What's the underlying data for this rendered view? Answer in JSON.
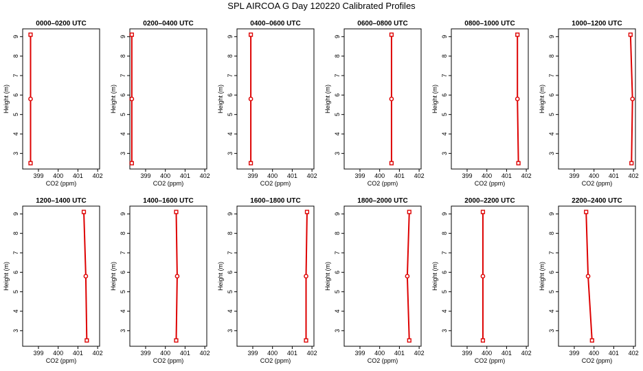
{
  "title": "SPL AIRCOA G  Day 120220  Calibrated Profiles",
  "chart_data": [
    {
      "type": "line",
      "title": "0000–0200 UTC",
      "xlabel": "CO2 (ppm)",
      "ylabel": "Height (m)",
      "xlim": [
        398.2,
        402.1
      ],
      "ylim": [
        2.2,
        9.4
      ],
      "x_ticks": [
        399,
        400,
        401,
        402
      ],
      "y_ticks": [
        3,
        4,
        5,
        6,
        7,
        8,
        9
      ],
      "series": [
        {
          "name": "profile",
          "x": [
            398.6,
            398.6,
            398.6
          ],
          "y": [
            2.5,
            5.8,
            9.1
          ]
        }
      ]
    },
    {
      "type": "line",
      "title": "0200–0400 UTC",
      "xlabel": "CO2 (ppm)",
      "ylabel": "Height (m)",
      "xlim": [
        398.2,
        402.1
      ],
      "ylim": [
        2.2,
        9.4
      ],
      "x_ticks": [
        399,
        400,
        401,
        402
      ],
      "y_ticks": [
        3,
        4,
        5,
        6,
        7,
        8,
        9
      ],
      "series": [
        {
          "name": "profile",
          "x": [
            398.3,
            398.3,
            398.3
          ],
          "y": [
            2.5,
            5.8,
            9.1
          ]
        }
      ]
    },
    {
      "type": "line",
      "title": "0400–0600 UTC",
      "xlabel": "CO2 (ppm)",
      "ylabel": "Height (m)",
      "xlim": [
        398.2,
        402.1
      ],
      "ylim": [
        2.2,
        9.4
      ],
      "x_ticks": [
        399,
        400,
        401,
        402
      ],
      "y_ticks": [
        3,
        4,
        5,
        6,
        7,
        8,
        9
      ],
      "series": [
        {
          "name": "profile",
          "x": [
            398.9,
            398.9,
            398.9
          ],
          "y": [
            2.5,
            5.8,
            9.1
          ]
        }
      ]
    },
    {
      "type": "line",
      "title": "0600–0800 UTC",
      "xlabel": "CO2 (ppm)",
      "ylabel": "Height (m)",
      "xlim": [
        398.2,
        402.1
      ],
      "ylim": [
        2.2,
        9.4
      ],
      "x_ticks": [
        399,
        400,
        401,
        402
      ],
      "y_ticks": [
        3,
        4,
        5,
        6,
        7,
        8,
        9
      ],
      "series": [
        {
          "name": "profile",
          "x": [
            400.6,
            400.6,
            400.6
          ],
          "y": [
            2.5,
            5.8,
            9.1
          ]
        }
      ]
    },
    {
      "type": "line",
      "title": "0800–1000 UTC",
      "xlabel": "CO2 (ppm)",
      "ylabel": "Height (m)",
      "xlim": [
        398.2,
        402.1
      ],
      "ylim": [
        2.2,
        9.4
      ],
      "x_ticks": [
        399,
        400,
        401,
        402
      ],
      "y_ticks": [
        3,
        4,
        5,
        6,
        7,
        8,
        9
      ],
      "series": [
        {
          "name": "profile",
          "x": [
            401.6,
            401.55,
            401.55
          ],
          "y": [
            2.5,
            5.8,
            9.1
          ]
        }
      ]
    },
    {
      "type": "line",
      "title": "1000–1200 UTC",
      "xlabel": "CO2 (ppm)",
      "ylabel": "Height (m)",
      "xlim": [
        398.2,
        402.1
      ],
      "ylim": [
        2.2,
        9.4
      ],
      "x_ticks": [
        399,
        400,
        401,
        402
      ],
      "y_ticks": [
        3,
        4,
        5,
        6,
        7,
        8,
        9
      ],
      "series": [
        {
          "name": "profile",
          "x": [
            401.9,
            401.95,
            401.85
          ],
          "y": [
            2.5,
            5.8,
            9.1
          ]
        }
      ]
    },
    {
      "type": "line",
      "title": "1200–1400 UTC",
      "xlabel": "CO2 (ppm)",
      "ylabel": "Height (m)",
      "xlim": [
        398.2,
        402.1
      ],
      "ylim": [
        2.2,
        9.4
      ],
      "x_ticks": [
        399,
        400,
        401,
        402
      ],
      "y_ticks": [
        3,
        4,
        5,
        6,
        7,
        8,
        9
      ],
      "series": [
        {
          "name": "profile",
          "x": [
            401.45,
            401.4,
            401.3
          ],
          "y": [
            2.5,
            5.8,
            9.1
          ]
        }
      ]
    },
    {
      "type": "line",
      "title": "1400–1600 UTC",
      "xlabel": "CO2 (ppm)",
      "ylabel": "Height (m)",
      "xlim": [
        398.2,
        402.1
      ],
      "ylim": [
        2.2,
        9.4
      ],
      "x_ticks": [
        399,
        400,
        401,
        402
      ],
      "y_ticks": [
        3,
        4,
        5,
        6,
        7,
        8,
        9
      ],
      "series": [
        {
          "name": "profile",
          "x": [
            400.55,
            400.6,
            400.55
          ],
          "y": [
            2.5,
            5.8,
            9.1
          ]
        }
      ]
    },
    {
      "type": "line",
      "title": "1600–1800 UTC",
      "xlabel": "CO2 (ppm)",
      "ylabel": "Height (m)",
      "xlim": [
        398.2,
        402.1
      ],
      "ylim": [
        2.2,
        9.4
      ],
      "x_ticks": [
        399,
        400,
        401,
        402
      ],
      "y_ticks": [
        3,
        4,
        5,
        6,
        7,
        8,
        9
      ],
      "series": [
        {
          "name": "profile",
          "x": [
            401.7,
            401.7,
            401.75
          ],
          "y": [
            2.5,
            5.8,
            9.1
          ]
        }
      ]
    },
    {
      "type": "line",
      "title": "1800–2000 UTC",
      "xlabel": "CO2 (ppm)",
      "ylabel": "Height (m)",
      "xlim": [
        398.2,
        402.1
      ],
      "ylim": [
        2.2,
        9.4
      ],
      "x_ticks": [
        399,
        400,
        401,
        402
      ],
      "y_ticks": [
        3,
        4,
        5,
        6,
        7,
        8,
        9
      ],
      "series": [
        {
          "name": "profile",
          "x": [
            401.5,
            401.4,
            401.5
          ],
          "y": [
            2.5,
            5.8,
            9.1
          ]
        }
      ]
    },
    {
      "type": "line",
      "title": "2000–2200 UTC",
      "xlabel": "CO2 (ppm)",
      "ylabel": "Height (m)",
      "xlim": [
        398.2,
        402.1
      ],
      "ylim": [
        2.2,
        9.4
      ],
      "x_ticks": [
        399,
        400,
        401,
        402
      ],
      "y_ticks": [
        3,
        4,
        5,
        6,
        7,
        8,
        9
      ],
      "series": [
        {
          "name": "profile",
          "x": [
            399.8,
            399.8,
            399.8
          ],
          "y": [
            2.5,
            5.8,
            9.1
          ]
        }
      ]
    },
    {
      "type": "line",
      "title": "2200–2400 UTC",
      "xlabel": "CO2 (ppm)",
      "ylabel": "Height (m)",
      "xlim": [
        398.2,
        402.1
      ],
      "ylim": [
        2.2,
        9.4
      ],
      "x_ticks": [
        399,
        400,
        401,
        402
      ],
      "y_ticks": [
        3,
        4,
        5,
        6,
        7,
        8,
        9
      ],
      "series": [
        {
          "name": "profile",
          "x": [
            399.9,
            399.7,
            399.6
          ],
          "y": [
            2.5,
            5.8,
            9.1
          ]
        }
      ]
    }
  ],
  "colors": {
    "profile": "#dd0000",
    "axis": "#000000",
    "background": "#ffffff"
  }
}
